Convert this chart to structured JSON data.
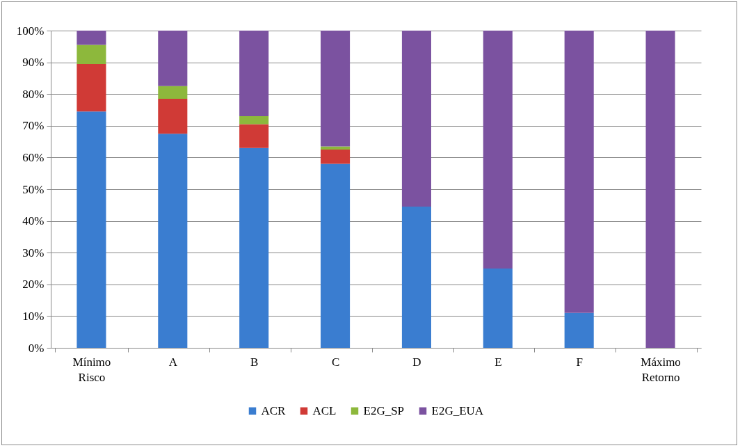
{
  "chart_data": {
    "type": "bar",
    "stacked": true,
    "categories": [
      "Mínimo Risco",
      "A",
      "B",
      "C",
      "D",
      "E",
      "F",
      "Máximo Retorno"
    ],
    "series": [
      {
        "name": "ACR",
        "color": "#3a7dd0",
        "values": [
          74.5,
          67.5,
          63,
          58,
          44.5,
          25,
          11,
          0
        ]
      },
      {
        "name": "ACL",
        "color": "#d03a36",
        "values": [
          15,
          11,
          7.5,
          4.5,
          0,
          0,
          0,
          0
        ]
      },
      {
        "name": "E2G_SP",
        "color": "#8db83c",
        "values": [
          6,
          4,
          2.5,
          1,
          0,
          0,
          0,
          0
        ]
      },
      {
        "name": "E2G_EUA",
        "color": "#7b52a0",
        "values": [
          4.5,
          17.5,
          27,
          36.5,
          55.5,
          75,
          89,
          100
        ]
      }
    ],
    "ylim": [
      0,
      100
    ],
    "yticks": [
      {
        "value": 0,
        "label": "0%"
      },
      {
        "value": 10,
        "label": "10%"
      },
      {
        "value": 20,
        "label": "20%"
      },
      {
        "value": 30,
        "label": "30%"
      },
      {
        "value": 40,
        "label": "40%"
      },
      {
        "value": 50,
        "label": "50%"
      },
      {
        "value": 60,
        "label": "60%"
      },
      {
        "value": 70,
        "label": "70%"
      },
      {
        "value": 80,
        "label": "80%"
      },
      {
        "value": 90,
        "label": "90%"
      },
      {
        "value": 100,
        "label": "100%"
      }
    ],
    "grid": "y",
    "legend": "bottom"
  }
}
